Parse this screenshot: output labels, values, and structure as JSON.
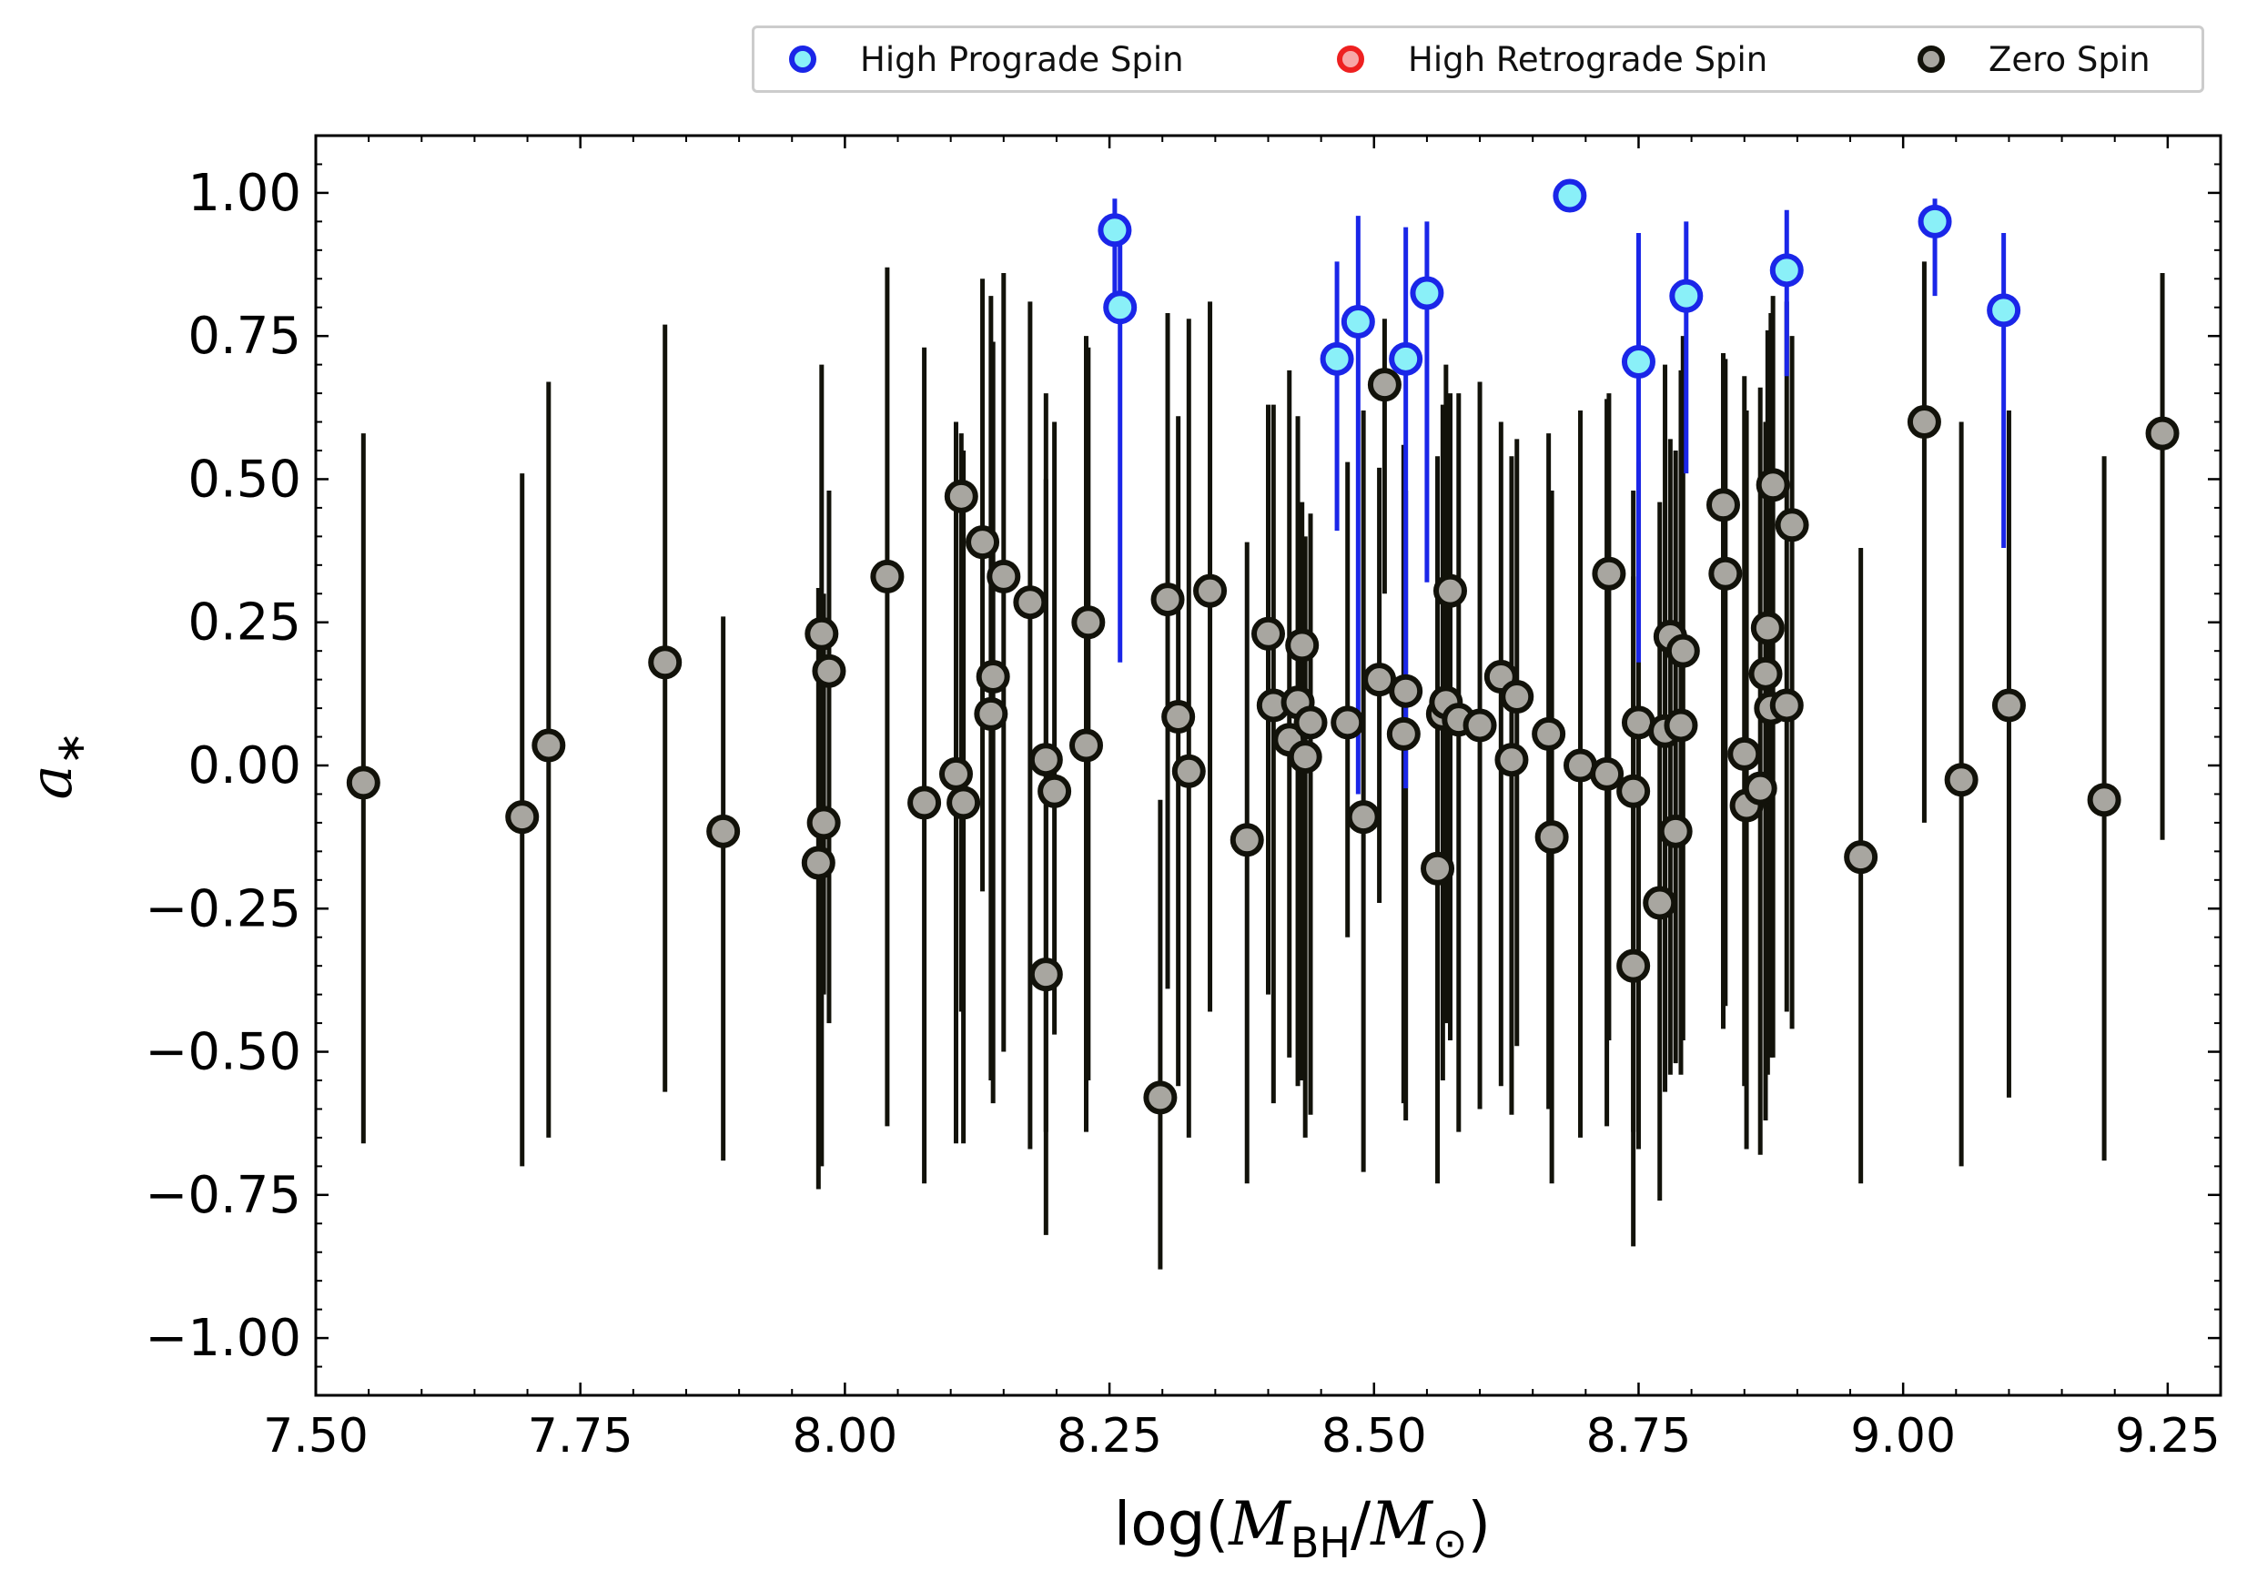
{
  "chart_data": {
    "type": "scatter",
    "title": "",
    "xlabel": "log(M_BH/M_⊙)",
    "xlabel_parts": {
      "pre": "log(",
      "m1": "M",
      "sub1": "BH",
      "slash": "/",
      "m2": "M",
      "sub2": "⊙",
      "post": ")"
    },
    "ylabel": "a*",
    "xlim": [
      7.5,
      9.3
    ],
    "ylim": [
      -1.1,
      1.1
    ],
    "xticks": [
      7.5,
      7.75,
      8.0,
      8.25,
      8.5,
      8.75,
      9.0,
      9.25
    ],
    "xtick_labels": [
      "7.50",
      "7.75",
      "8.00",
      "8.25",
      "8.50",
      "8.75",
      "9.00",
      "9.25"
    ],
    "yticks": [
      -1.0,
      -0.75,
      -0.5,
      -0.25,
      0.0,
      0.25,
      0.5,
      0.75,
      1.0
    ],
    "ytick_labels": [
      "−1.00",
      "−0.75",
      "−0.50",
      "−0.25",
      "0.00",
      "0.25",
      "0.50",
      "0.75",
      "1.00"
    ],
    "legend": [
      {
        "name": "High Prograde Spin",
        "face": "#8af0f8",
        "edge": "#1a26e8"
      },
      {
        "name": "High Retrograde Spin",
        "face": "#f7a8a8",
        "edge": "#ee2020"
      },
      {
        "name": "Zero Spin",
        "face": "#a8a6a0",
        "edge": "#12120a"
      }
    ],
    "series": [
      {
        "name": "High Prograde Spin",
        "marker_face": "#8af0f8",
        "marker_edge": "#1a26e8",
        "errorbar_color": "#1a26e8",
        "points": [
          {
            "x": 8.255,
            "y": 0.935,
            "lo": 0.8,
            "hi": 0.99
          },
          {
            "x": 8.26,
            "y": 0.8,
            "lo": 0.18,
            "hi": 0.93
          },
          {
            "x": 8.465,
            "y": 0.71,
            "lo": 0.41,
            "hi": 0.88
          },
          {
            "x": 8.485,
            "y": 0.775,
            "lo": -0.05,
            "hi": 0.96
          },
          {
            "x": 8.53,
            "y": 0.71,
            "lo": -0.04,
            "hi": 0.94
          },
          {
            "x": 8.55,
            "y": 0.825,
            "lo": 0.32,
            "hi": 0.95
          },
          {
            "x": 8.685,
            "y": 0.995,
            "lo": 0.99,
            "hi": 1.0
          },
          {
            "x": 8.75,
            "y": 0.705,
            "lo": 0.18,
            "hi": 0.93
          },
          {
            "x": 8.795,
            "y": 0.82,
            "lo": 0.51,
            "hi": 0.95
          },
          {
            "x": 8.89,
            "y": 0.865,
            "lo": 0.68,
            "hi": 0.97
          },
          {
            "x": 9.03,
            "y": 0.95,
            "lo": 0.82,
            "hi": 0.99
          },
          {
            "x": 9.095,
            "y": 0.795,
            "lo": 0.38,
            "hi": 0.93
          }
        ]
      },
      {
        "name": "High Retrograde Spin",
        "marker_face": "#f7a8a8",
        "marker_edge": "#ee2020",
        "errorbar_color": "#ee2020",
        "points": []
      },
      {
        "name": "Zero Spin",
        "marker_face": "#a8a6a0",
        "marker_edge": "#12120a",
        "errorbar_color": "#12120a",
        "points": [
          {
            "x": 7.545,
            "y": -0.03,
            "lo": -0.66,
            "hi": 0.58
          },
          {
            "x": 7.695,
            "y": -0.09,
            "lo": -0.7,
            "hi": 0.51
          },
          {
            "x": 7.72,
            "y": 0.035,
            "lo": -0.65,
            "hi": 0.67
          },
          {
            "x": 7.83,
            "y": 0.18,
            "lo": -0.57,
            "hi": 0.77
          },
          {
            "x": 7.885,
            "y": -0.115,
            "lo": -0.69,
            "hi": 0.26
          },
          {
            "x": 7.975,
            "y": -0.17,
            "lo": -0.74,
            "hi": 0.31
          },
          {
            "x": 7.978,
            "y": 0.23,
            "lo": -0.7,
            "hi": 0.7
          },
          {
            "x": 7.98,
            "y": -0.1,
            "lo": -0.4,
            "hi": 0.3
          },
          {
            "x": 7.985,
            "y": 0.165,
            "lo": -0.45,
            "hi": 0.48
          },
          {
            "x": 8.04,
            "y": 0.33,
            "lo": -0.63,
            "hi": 0.87
          },
          {
            "x": 8.075,
            "y": -0.065,
            "lo": -0.73,
            "hi": 0.73
          },
          {
            "x": 8.105,
            "y": -0.015,
            "lo": -0.66,
            "hi": 0.6
          },
          {
            "x": 8.11,
            "y": 0.47,
            "lo": -0.43,
            "hi": 0.58
          },
          {
            "x": 8.112,
            "y": -0.065,
            "lo": -0.66,
            "hi": 0.55
          },
          {
            "x": 8.13,
            "y": 0.39,
            "lo": -0.22,
            "hi": 0.85
          },
          {
            "x": 8.138,
            "y": 0.09,
            "lo": -0.55,
            "hi": 0.82
          },
          {
            "x": 8.14,
            "y": 0.155,
            "lo": -0.59,
            "hi": 0.74
          },
          {
            "x": 8.15,
            "y": 0.33,
            "lo": -0.5,
            "hi": 0.86
          },
          {
            "x": 8.175,
            "y": 0.285,
            "lo": -0.67,
            "hi": 0.81
          },
          {
            "x": 8.19,
            "y": -0.365,
            "lo": -0.82,
            "hi": 0.5
          },
          {
            "x": 8.19,
            "y": 0.01,
            "lo": -0.64,
            "hi": 0.65
          },
          {
            "x": 8.198,
            "y": -0.045,
            "lo": -0.47,
            "hi": 0.6
          },
          {
            "x": 8.228,
            "y": 0.035,
            "lo": -0.64,
            "hi": 0.75
          },
          {
            "x": 8.23,
            "y": 0.25,
            "lo": -0.55,
            "hi": 0.73
          },
          {
            "x": 8.298,
            "y": -0.58,
            "lo": -0.88,
            "hi": -0.06
          },
          {
            "x": 8.305,
            "y": 0.29,
            "lo": -0.39,
            "hi": 0.79
          },
          {
            "x": 8.315,
            "y": 0.085,
            "lo": -0.56,
            "hi": 0.61
          },
          {
            "x": 8.325,
            "y": -0.01,
            "lo": -0.65,
            "hi": 0.78
          },
          {
            "x": 8.345,
            "y": 0.305,
            "lo": -0.43,
            "hi": 0.81
          },
          {
            "x": 8.38,
            "y": -0.13,
            "lo": -0.73,
            "hi": 0.39
          },
          {
            "x": 8.4,
            "y": 0.23,
            "lo": -0.4,
            "hi": 0.63
          },
          {
            "x": 8.405,
            "y": 0.105,
            "lo": -0.59,
            "hi": 0.63
          },
          {
            "x": 8.42,
            "y": 0.045,
            "lo": -0.51,
            "hi": 0.69
          },
          {
            "x": 8.428,
            "y": 0.11,
            "lo": -0.56,
            "hi": 0.61
          },
          {
            "x": 8.432,
            "y": 0.21,
            "lo": -0.55,
            "hi": 0.46
          },
          {
            "x": 8.435,
            "y": 0.015,
            "lo": -0.65,
            "hi": 0.4
          },
          {
            "x": 8.44,
            "y": 0.075,
            "lo": -0.61,
            "hi": 0.44
          },
          {
            "x": 8.475,
            "y": 0.075,
            "lo": -0.3,
            "hi": 0.53
          },
          {
            "x": 8.49,
            "y": -0.09,
            "lo": -0.71,
            "hi": 0.62
          },
          {
            "x": 8.505,
            "y": 0.15,
            "lo": -0.24,
            "hi": 0.52
          },
          {
            "x": 8.51,
            "y": 0.665,
            "lo": 0.3,
            "hi": 0.78
          },
          {
            "x": 8.528,
            "y": 0.055,
            "lo": -0.59,
            "hi": 0.56
          },
          {
            "x": 8.53,
            "y": 0.13,
            "lo": -0.62,
            "hi": 0.48
          },
          {
            "x": 8.56,
            "y": -0.18,
            "lo": -0.73,
            "hi": 0.54
          },
          {
            "x": 8.565,
            "y": 0.09,
            "lo": -0.55,
            "hi": 0.63
          },
          {
            "x": 8.568,
            "y": 0.11,
            "lo": -0.45,
            "hi": 0.7
          },
          {
            "x": 8.572,
            "y": 0.305,
            "lo": -0.48,
            "hi": 0.65
          },
          {
            "x": 8.58,
            "y": 0.08,
            "lo": -0.64,
            "hi": 0.65
          },
          {
            "x": 8.6,
            "y": 0.07,
            "lo": -0.6,
            "hi": 0.67
          },
          {
            "x": 8.62,
            "y": 0.155,
            "lo": -0.56,
            "hi": 0.6
          },
          {
            "x": 8.63,
            "y": 0.01,
            "lo": -0.61,
            "hi": 0.54
          },
          {
            "x": 8.635,
            "y": 0.12,
            "lo": -0.49,
            "hi": 0.57
          },
          {
            "x": 8.665,
            "y": 0.055,
            "lo": -0.6,
            "hi": 0.58
          },
          {
            "x": 8.668,
            "y": -0.125,
            "lo": -0.73,
            "hi": 0.48
          },
          {
            "x": 8.695,
            "y": 0.0,
            "lo": -0.65,
            "hi": 0.62
          },
          {
            "x": 8.72,
            "y": -0.015,
            "lo": -0.63,
            "hi": 0.64
          },
          {
            "x": 8.722,
            "y": 0.335,
            "lo": -0.48,
            "hi": 0.65
          },
          {
            "x": 8.745,
            "y": -0.35,
            "lo": -0.84,
            "hi": 0.33
          },
          {
            "x": 8.745,
            "y": -0.045,
            "lo": -0.64,
            "hi": 0.48
          },
          {
            "x": 8.75,
            "y": 0.075,
            "lo": -0.67,
            "hi": 0.53
          },
          {
            "x": 8.77,
            "y": -0.24,
            "lo": -0.76,
            "hi": 0.46
          },
          {
            "x": 8.775,
            "y": 0.06,
            "lo": -0.57,
            "hi": 0.7
          },
          {
            "x": 8.78,
            "y": 0.225,
            "lo": -0.54,
            "hi": 0.57
          },
          {
            "x": 8.785,
            "y": -0.115,
            "lo": -0.52,
            "hi": 0.55
          },
          {
            "x": 8.79,
            "y": 0.07,
            "lo": -0.54,
            "hi": 0.69
          },
          {
            "x": 8.792,
            "y": 0.2,
            "lo": -0.48,
            "hi": 0.75
          },
          {
            "x": 8.83,
            "y": 0.455,
            "lo": -0.46,
            "hi": 0.72
          },
          {
            "x": 8.832,
            "y": 0.335,
            "lo": -0.42,
            "hi": 0.71
          },
          {
            "x": 8.85,
            "y": 0.02,
            "lo": -0.56,
            "hi": 0.68
          },
          {
            "x": 8.852,
            "y": -0.07,
            "lo": -0.67,
            "hi": 0.62
          },
          {
            "x": 8.865,
            "y": -0.04,
            "lo": -0.68,
            "hi": 0.66
          },
          {
            "x": 8.87,
            "y": 0.16,
            "lo": -0.62,
            "hi": 0.6
          },
          {
            "x": 8.872,
            "y": 0.24,
            "lo": -0.54,
            "hi": 0.76
          },
          {
            "x": 8.875,
            "y": 0.1,
            "lo": -0.51,
            "hi": 0.79
          },
          {
            "x": 8.877,
            "y": 0.49,
            "lo": -0.51,
            "hi": 0.82
          },
          {
            "x": 8.89,
            "y": 0.105,
            "lo": -0.43,
            "hi": 0.81
          },
          {
            "x": 8.895,
            "y": 0.42,
            "lo": -0.46,
            "hi": 0.75
          },
          {
            "x": 8.96,
            "y": -0.16,
            "lo": -0.73,
            "hi": 0.38
          },
          {
            "x": 9.02,
            "y": 0.6,
            "lo": -0.1,
            "hi": 0.88
          },
          {
            "x": 9.055,
            "y": -0.025,
            "lo": -0.7,
            "hi": 0.6
          },
          {
            "x": 9.1,
            "y": 0.105,
            "lo": -0.58,
            "hi": 0.62
          },
          {
            "x": 9.19,
            "y": -0.06,
            "lo": -0.69,
            "hi": 0.54
          },
          {
            "x": 9.245,
            "y": 0.58,
            "lo": -0.13,
            "hi": 0.86
          }
        ]
      }
    ]
  }
}
